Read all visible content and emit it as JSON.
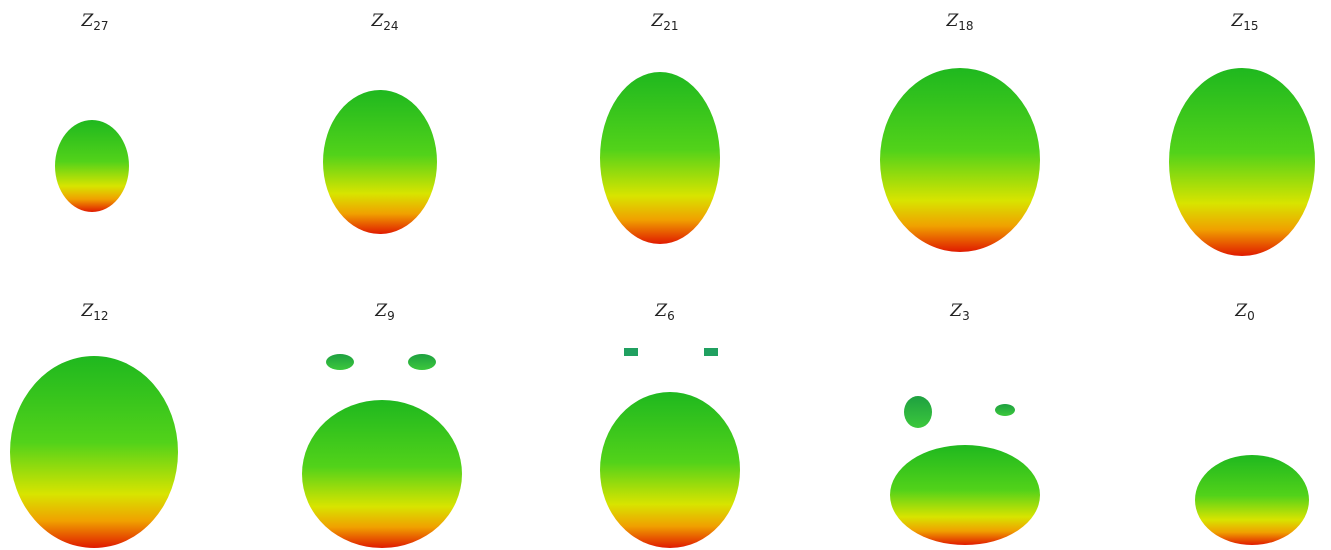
{
  "panels": [
    {
      "letter": "Z",
      "subscript": "27"
    },
    {
      "letter": "Z",
      "subscript": "24"
    },
    {
      "letter": "Z",
      "subscript": "21"
    },
    {
      "letter": "Z",
      "subscript": "18"
    },
    {
      "letter": "Z",
      "subscript": "15"
    },
    {
      "letter": "Z",
      "subscript": "12"
    },
    {
      "letter": "Z",
      "subscript": "9"
    },
    {
      "letter": "Z",
      "subscript": "6"
    },
    {
      "letter": "Z",
      "subscript": "3"
    },
    {
      "letter": "Z",
      "subscript": "0"
    }
  ]
}
